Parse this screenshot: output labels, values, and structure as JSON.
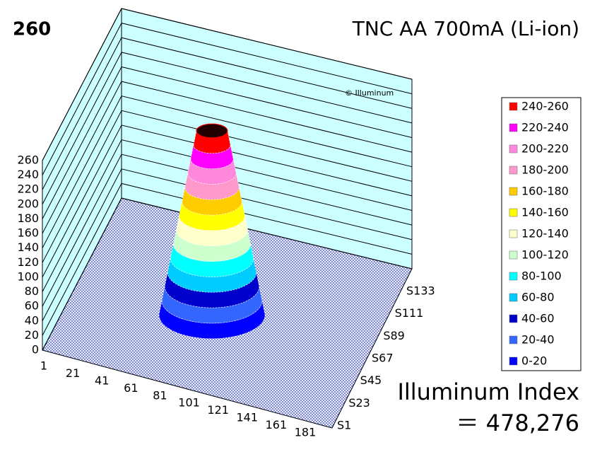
{
  "chart_data": {
    "type": "surface3d",
    "title": "TNC AA 700mA (Li-ion)",
    "max_value": 260,
    "watermark": "© Illuminum",
    "zlim": [
      0,
      260
    ],
    "zticks": [
      0,
      20,
      40,
      60,
      80,
      100,
      120,
      140,
      160,
      180,
      200,
      220,
      240,
      260
    ],
    "categories": [
      "1",
      "21",
      "41",
      "61",
      "81",
      "101",
      "121",
      "141",
      "161",
      "181"
    ],
    "series_names": [
      "S1",
      "S23",
      "S45",
      "S67",
      "S89",
      "S111",
      "S133"
    ],
    "legend": [
      {
        "label": "240-260",
        "color": "#ff0000"
      },
      {
        "label": "220-240",
        "color": "#ff00ff"
      },
      {
        "label": "200-220",
        "color": "#ff88dd"
      },
      {
        "label": "180-200",
        "color": "#ff99cc"
      },
      {
        "label": "160-180",
        "color": "#ffcc00"
      },
      {
        "label": "140-160",
        "color": "#ffff00"
      },
      {
        "label": "120-140",
        "color": "#ffffcc"
      },
      {
        "label": "100-120",
        "color": "#ccffcc"
      },
      {
        "label": "80-100",
        "color": "#00ffff"
      },
      {
        "label": "60-80",
        "color": "#00ccff"
      },
      {
        "label": "40-60",
        "color": "#0000cc"
      },
      {
        "label": "20-40",
        "color": "#3366ff"
      },
      {
        "label": "0-20",
        "color": "#0000ff"
      }
    ],
    "index_label": "Illuminum Index",
    "index_value": 478276,
    "index_value_label": "＝ 478,276"
  }
}
